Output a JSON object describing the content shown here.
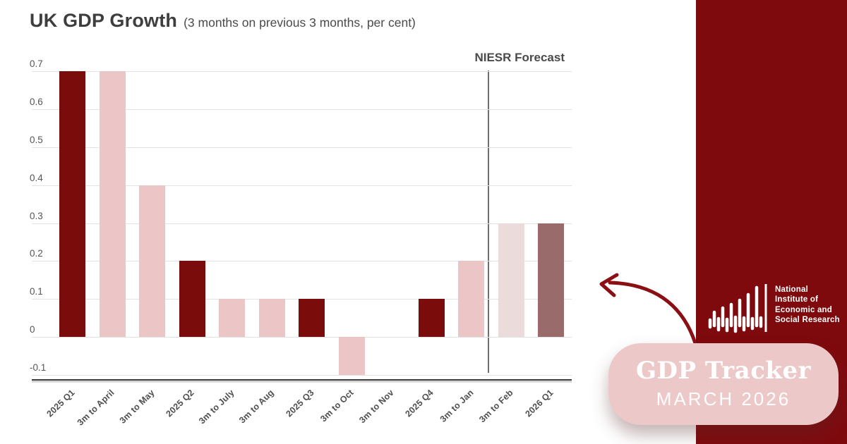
{
  "chart_data": {
    "type": "bar",
    "title": "UK GDP Growth",
    "subtitle": "(3 months on previous 3 months, per cent)",
    "categories": [
      "2025 Q1",
      "3m to April",
      "3m to May",
      "2025 Q2",
      "3m to July",
      "3m to Aug",
      "2025 Q3",
      "3m to Oct",
      "3m to Nov",
      "2025 Q4",
      "3m to Jan",
      "3m to Feb",
      "2026 Q1"
    ],
    "values": [
      0.7,
      0.7,
      0.4,
      0.2,
      0.1,
      0.1,
      0.1,
      -0.1,
      0,
      0.1,
      0.2,
      0.3,
      0.3
    ],
    "bar_colors": [
      "#7a0c0c",
      "#ecc5c6",
      "#ecc5c6",
      "#7a0c0c",
      "#ecc5c6",
      "#ecc5c6",
      "#7a0c0c",
      "#ecc5c6",
      "#ecc5c6",
      "#7a0c0c",
      "#ecc5c6",
      "#ecdbdb",
      "#9a6b6b"
    ],
    "yticks": [
      0.7,
      0.6,
      0.5,
      0.4,
      0.3,
      0.2,
      0.1,
      0,
      -0.1
    ],
    "ytick_labels": [
      "0.7",
      "0.6",
      "0.5",
      "0.4",
      "0.3",
      "0.2",
      "0.1",
      "0",
      "-0.1"
    ],
    "ylim": [
      -0.1,
      0.7
    ],
    "grid": true,
    "legend": "none",
    "forecast_label": "NIESR Forecast",
    "forecast_line_after_index": 10,
    "colors": {
      "actual_quarter": "#7a0c0c",
      "actual_month": "#ecc5c6",
      "forecast_month": "#ecdbdb",
      "forecast_quarter": "#9a6b6b",
      "gridline": "#e3e3e3",
      "axis": "#3d3d3d",
      "forecast_line": "#6e6e6e"
    }
  },
  "sidebar": {
    "background": "#7f0a0e",
    "logo": {
      "icon": "niesr-waveform-icon",
      "lines": [
        "National",
        "Institute of",
        "Economic and",
        "Social Research"
      ]
    },
    "badge": {
      "title": "GDP Tracker",
      "subtitle": "MARCH 2026",
      "background": "#edc8c8",
      "text_color": "#ffffff"
    },
    "arrow_color": "#8a1014"
  }
}
